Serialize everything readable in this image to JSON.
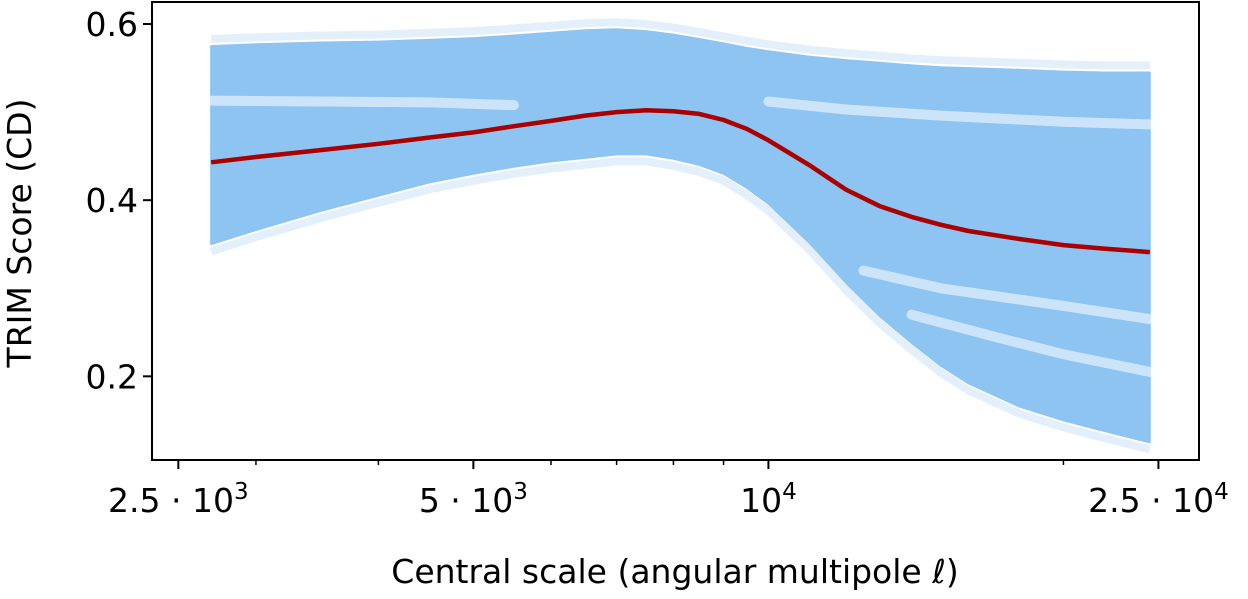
{
  "chart_data": {
    "type": "line",
    "xlabel": "Central scale (angular multipole ℓ)",
    "ylabel": "TRIM Score (CD)",
    "xscale": "log",
    "xlim": [
      2350,
      27500
    ],
    "ylim": [
      0.105,
      0.625
    ],
    "grid": false,
    "x_ticks": [
      {
        "value": 2500,
        "mantissa": "2.5 · 10",
        "exponent": "3"
      },
      {
        "value": 5000,
        "mantissa": "5 · 10",
        "exponent": "3"
      },
      {
        "value": 10000,
        "mantissa": "10",
        "exponent": "4"
      },
      {
        "value": 25000,
        "mantissa": "2.5 · 10",
        "exponent": "4"
      }
    ],
    "y_ticks": [
      {
        "value": 0.2,
        "label": "0.2"
      },
      {
        "value": 0.4,
        "label": "0.4"
      },
      {
        "value": 0.6,
        "label": "0.6"
      }
    ],
    "x": [
      2700,
      3000,
      3500,
      4000,
      4500,
      5000,
      5500,
      6000,
      6500,
      7000,
      7500,
      8000,
      8500,
      9000,
      9500,
      10000,
      11000,
      12000,
      13000,
      14000,
      15000,
      16000,
      18000,
      20000,
      22000,
      24500
    ],
    "series": [
      {
        "role": "mean",
        "color": "#aa0000",
        "values": [
          0.443,
          0.449,
          0.457,
          0.464,
          0.471,
          0.477,
          0.484,
          0.49,
          0.496,
          0.5,
          0.502,
          0.501,
          0.498,
          0.491,
          0.481,
          0.468,
          0.44,
          0.412,
          0.393,
          0.381,
          0.372,
          0.365,
          0.356,
          0.349,
          0.345,
          0.341
        ]
      },
      {
        "role": "ensemble-band-upper",
        "color": "#8ec4f2",
        "values": [
          0.575,
          0.577,
          0.579,
          0.58,
          0.582,
          0.584,
          0.587,
          0.59,
          0.593,
          0.594,
          0.592,
          0.588,
          0.583,
          0.578,
          0.573,
          0.569,
          0.563,
          0.559,
          0.556,
          0.553,
          0.551,
          0.55,
          0.548,
          0.546,
          0.545,
          0.545
        ]
      },
      {
        "role": "ensemble-band-lower",
        "color": "#8ec4f2",
        "values": [
          0.35,
          0.366,
          0.388,
          0.405,
          0.42,
          0.43,
          0.438,
          0.444,
          0.448,
          0.452,
          0.452,
          0.447,
          0.44,
          0.43,
          0.414,
          0.396,
          0.352,
          0.306,
          0.268,
          0.238,
          0.212,
          0.192,
          0.166,
          0.15,
          0.138,
          0.125
        ]
      }
    ],
    "white_streaks": [
      {
        "x": [
          2700,
          3500,
          4500,
          5500
        ],
        "values": [
          0.513,
          0.512,
          0.511,
          0.508
        ]
      },
      {
        "x": [
          10000,
          12000,
          15000,
          20000,
          24500
        ],
        "values": [
          0.512,
          0.503,
          0.496,
          0.489,
          0.486
        ]
      },
      {
        "x": [
          12500,
          15000,
          20000,
          24500
        ],
        "values": [
          0.32,
          0.3,
          0.28,
          0.265
        ]
      },
      {
        "x": [
          14000,
          17000,
          20000,
          24500
        ],
        "values": [
          0.27,
          0.245,
          0.225,
          0.205
        ]
      }
    ]
  }
}
